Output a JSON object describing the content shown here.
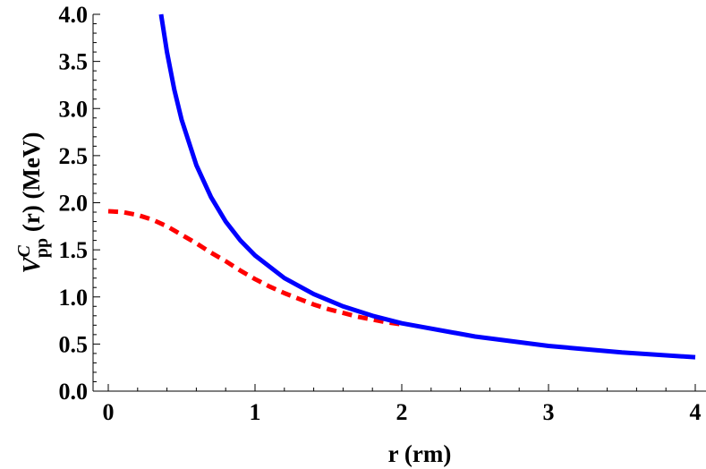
{
  "chart_data": {
    "type": "line",
    "title": "",
    "xlabel": "r (rm)",
    "ylabel": {
      "main": "V",
      "superscript": "C",
      "subscript": "pp",
      "rest": " (r) (MeV)"
    },
    "xlim": [
      0,
      4
    ],
    "ylim": [
      0,
      4
    ],
    "x_ticks": [
      "0",
      "1",
      "2",
      "3",
      "4"
    ],
    "y_ticks": [
      "0.0",
      "0.5",
      "1.0",
      "1.5",
      "2.0",
      "2.5",
      "3.0",
      "3.5",
      "4.0"
    ],
    "grid": false,
    "series": [
      {
        "style": "solid",
        "color": "#0000ff",
        "x": [
          0.36,
          0.4,
          0.45,
          0.5,
          0.6,
          0.7,
          0.8,
          0.9,
          1.0,
          1.2,
          1.4,
          1.6,
          1.8,
          2.0,
          2.5,
          3.0,
          3.5,
          4.0
        ],
        "y": [
          4.0,
          3.6,
          3.2,
          2.88,
          2.4,
          2.06,
          1.8,
          1.6,
          1.44,
          1.2,
          1.03,
          0.9,
          0.8,
          0.72,
          0.58,
          0.48,
          0.41,
          0.36
        ]
      },
      {
        "style": "dashed",
        "color": "#ff0000",
        "x": [
          0.0,
          0.1,
          0.2,
          0.3,
          0.4,
          0.5,
          0.6,
          0.7,
          0.8,
          0.9,
          1.0,
          1.1,
          1.2,
          1.3,
          1.4,
          1.5,
          1.6,
          1.7,
          1.8,
          1.9,
          2.0
        ],
        "y": [
          1.91,
          1.9,
          1.87,
          1.82,
          1.75,
          1.66,
          1.57,
          1.47,
          1.38,
          1.28,
          1.19,
          1.11,
          1.04,
          0.98,
          0.92,
          0.87,
          0.83,
          0.79,
          0.76,
          0.73,
          0.71
        ]
      }
    ]
  }
}
